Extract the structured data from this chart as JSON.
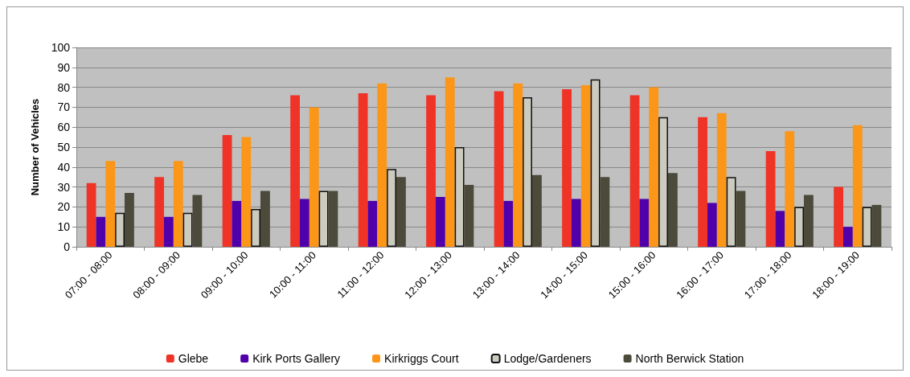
{
  "chart_data": {
    "type": "bar",
    "ylabel": "Number of Vehicles",
    "categories": [
      "07:00 - 08:00",
      "08:00 - 09:00",
      "09:00 - 10:00",
      "10:00 - 11:00",
      "11:00 - 12:00",
      "12:00 - 13:00",
      "13:00 - 14:00",
      "14:00 - 15:00",
      "15:00 - 16:00",
      "16:00 - 17:00",
      "17:00 - 18:00",
      "18:00 - 19:00"
    ],
    "series": [
      {
        "name": "Glebe",
        "color": "#ef3427",
        "values": [
          32,
          35,
          56,
          76,
          77,
          76,
          78,
          79,
          76,
          65,
          48,
          30
        ]
      },
      {
        "name": "Kirk Ports Gallery",
        "color": "#5000aa",
        "values": [
          15,
          15,
          23,
          24,
          23,
          25,
          23,
          24,
          24,
          22,
          18,
          10
        ]
      },
      {
        "name": "Kirkriggs Court",
        "color": "#fb9618",
        "values": [
          43,
          43,
          55,
          70,
          82,
          85,
          82,
          81,
          80,
          67,
          58,
          61
        ]
      },
      {
        "name": "Lodge/Gardeners",
        "color": "#cccbc0",
        "values": [
          17,
          17,
          19,
          28,
          39,
          50,
          75,
          84,
          65,
          35,
          20,
          20
        ]
      },
      {
        "name": "North Berwick Station",
        "color": "#4c4a3a",
        "values": [
          27,
          26,
          28,
          28,
          35,
          31,
          36,
          35,
          37,
          28,
          26,
          21
        ]
      }
    ],
    "ylim": [
      0,
      100
    ],
    "yticks": [
      0,
      10,
      20,
      30,
      40,
      50,
      60,
      70,
      80,
      90,
      100
    ],
    "grid": "y",
    "legend": "bottom"
  }
}
